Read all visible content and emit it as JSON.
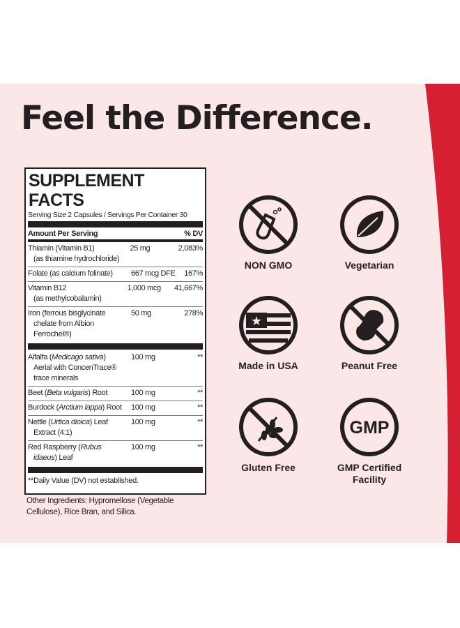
{
  "headline": "Feel the Difference.",
  "colors": {
    "background": "#fbe6e8",
    "accent_red": "#d71f32",
    "text": "#231f20"
  },
  "supplement_facts": {
    "title": "SUPPLEMENT FACTS",
    "serving": "Serving Size 2 Capsules / Servings Per Container 30",
    "header_amount": "Amount Per Serving",
    "header_dv": "% DV",
    "group1": [
      {
        "lines": [
          [
            {
              "t": "Thiamin (Vitamin B1)"
            }
          ],
          [
            {
              "t": "(as thiamine hydrochloride)"
            }
          ]
        ],
        "amount": "25 mg",
        "dv": "2,083%"
      },
      {
        "lines": [
          [
            {
              "t": "Folate (as calcium folinate)"
            }
          ]
        ],
        "amount": "667 mcg DFE",
        "dv": "167%"
      },
      {
        "lines": [
          [
            {
              "t": "Vitamin B12"
            }
          ],
          [
            {
              "t": "(as methylcobalamin)"
            }
          ]
        ],
        "amount": "1,000 mcg",
        "dv": "41,667%"
      },
      {
        "lines": [
          [
            {
              "t": "Iron (ferrous bisglycinate"
            }
          ],
          [
            {
              "t": "chelate from Albion"
            }
          ],
          [
            {
              "t": "Ferrochel®)"
            }
          ]
        ],
        "amount": "50 mg",
        "dv": "278%"
      }
    ],
    "group2": [
      {
        "lines": [
          [
            {
              "t": "Alfalfa ("
            },
            {
              "t": "Medicago sativa",
              "i": true
            },
            {
              "t": ")"
            }
          ],
          [
            {
              "t": "Aerial with ConcenTrace®"
            }
          ],
          [
            {
              "t": "trace minerals"
            }
          ]
        ],
        "amount": "100 mg",
        "dv": "**"
      },
      {
        "lines": [
          [
            {
              "t": "Beet ("
            },
            {
              "t": "Beta vulgaris",
              "i": true
            },
            {
              "t": ") Root"
            }
          ]
        ],
        "amount": "100 mg",
        "dv": "**"
      },
      {
        "lines": [
          [
            {
              "t": "Burdock ("
            },
            {
              "t": "Arctium lappa",
              "i": true
            },
            {
              "t": ") Root"
            }
          ]
        ],
        "amount": "100 mg",
        "dv": "**"
      },
      {
        "lines": [
          [
            {
              "t": "Nettle ("
            },
            {
              "t": "Urtica dioica",
              "i": true
            },
            {
              "t": ") Leaf"
            }
          ],
          [
            {
              "t": "Extract (4:1)"
            }
          ]
        ],
        "amount": "100 mg",
        "dv": "**"
      },
      {
        "lines": [
          [
            {
              "t": "Red Raspberry ("
            },
            {
              "t": "Rubus",
              "i": true
            }
          ],
          [
            {
              "t": "idaeus",
              "i": true
            },
            {
              "t": ") Leaf"
            }
          ]
        ],
        "amount": "100 mg",
        "dv": "**"
      }
    ],
    "footnote": "**Daily Value (DV) not established.",
    "other_ingredients": "Other Ingredients: Hypromellose (Vegetable Cellulose), Rice Bran, and Silica."
  },
  "badges": [
    {
      "icon": "no-gmo-flask-icon",
      "label": "NON GMO"
    },
    {
      "icon": "leaf-icon",
      "label": "Vegetarian"
    },
    {
      "icon": "usa-flag-icon",
      "label": "Made in USA"
    },
    {
      "icon": "no-peanut-icon",
      "label": "Peanut Free"
    },
    {
      "icon": "no-wheat-icon",
      "label": "Gluten Free"
    },
    {
      "icon": "gmp-icon",
      "label": "GMP Certified Facility",
      "icon_text": "GMP"
    }
  ]
}
